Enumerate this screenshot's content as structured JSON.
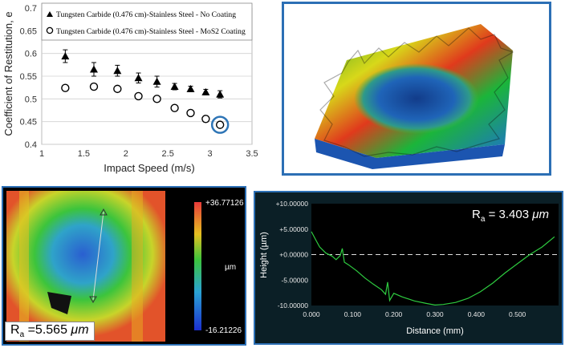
{
  "chart_data": [
    {
      "type": "scatter",
      "xlabel": "Impact Speed (m/s)",
      "ylabel": "Coefficient of Restitution, e",
      "xlim": [
        1,
        3.5
      ],
      "ylim": [
        0.4,
        0.7
      ],
      "x_ticks": [
        "1",
        "1.5",
        "2",
        "2.5",
        "3",
        "3.5"
      ],
      "y_ticks": [
        "0.4",
        "0.45",
        "0.5",
        "0.55",
        "0.6",
        "0.65",
        "0.7"
      ],
      "legend_position": "top",
      "series": [
        {
          "name": "Tungsten Carbide (0.476 cm)-Stainless Steel - No Coating",
          "marker": "filled-triangle",
          "points": [
            [
              1.28,
              0.594
            ],
            [
              1.62,
              0.565
            ],
            [
              1.9,
              0.562
            ],
            [
              2.15,
              0.546
            ],
            [
              2.37,
              0.538
            ],
            [
              2.58,
              0.527
            ],
            [
              2.77,
              0.522
            ],
            [
              2.95,
              0.515
            ],
            [
              3.12,
              0.51
            ]
          ],
          "error": [
            0.014,
            0.015,
            0.012,
            0.011,
            0.012,
            0.007,
            0.006,
            0.006,
            0.008
          ]
        },
        {
          "name": "Tungsten Carbide (0.476 cm)-Stainless Steel - MoS2 Coating",
          "marker": "open-circle",
          "points": [
            [
              1.28,
              0.524
            ],
            [
              1.62,
              0.527
            ],
            [
              1.9,
              0.522
            ],
            [
              2.15,
              0.506
            ],
            [
              2.37,
              0.5
            ],
            [
              2.58,
              0.48
            ],
            [
              2.77,
              0.469
            ],
            [
              2.95,
              0.456
            ],
            [
              3.12,
              0.443
            ]
          ]
        }
      ],
      "colors": {
        "marker": "#000000",
        "highlight": "#2e75b6"
      }
    },
    {
      "type": "line",
      "ylabel": "Height (µm)",
      "xlabel": "Distance (mm)",
      "xlim": [
        0,
        0.6
      ],
      "ylim": [
        -10,
        10
      ],
      "x_ticks": [
        "0.000",
        "0.100",
        "0.200",
        "0.300",
        "0.400",
        "0.500"
      ],
      "y_ticks": [
        "+10.00000",
        "+5.00000",
        "+0.00000",
        "-5.00000",
        "-10.00000"
      ],
      "annotation_ra": "3.403",
      "annotation_unit": "μm",
      "series": [
        {
          "points": [
            [
              0.0,
              4.5
            ],
            [
              0.01,
              3.0
            ],
            [
              0.02,
              1.5
            ],
            [
              0.035,
              0.3
            ],
            [
              0.05,
              -0.3
            ],
            [
              0.06,
              -1.0
            ],
            [
              0.07,
              -0.2
            ],
            [
              0.075,
              1.2
            ],
            [
              0.08,
              -1.5
            ],
            [
              0.09,
              -2.0
            ],
            [
              0.11,
              -3.2
            ],
            [
              0.13,
              -4.6
            ],
            [
              0.15,
              -5.8
            ],
            [
              0.17,
              -6.9
            ],
            [
              0.18,
              -7.8
            ],
            [
              0.185,
              -5.4
            ],
            [
              0.19,
              -9.0
            ],
            [
              0.2,
              -7.6
            ],
            [
              0.22,
              -8.3
            ],
            [
              0.25,
              -9.1
            ],
            [
              0.28,
              -9.6
            ],
            [
              0.3,
              -9.9
            ],
            [
              0.32,
              -9.8
            ],
            [
              0.35,
              -9.4
            ],
            [
              0.38,
              -8.6
            ],
            [
              0.41,
              -7.3
            ],
            [
              0.44,
              -5.6
            ],
            [
              0.47,
              -3.6
            ],
            [
              0.5,
              -1.8
            ],
            [
              0.53,
              0.0
            ],
            [
              0.56,
              1.5
            ],
            [
              0.59,
              3.5
            ]
          ]
        }
      ],
      "colors": {
        "line": "#2ecc40",
        "background": "#0b1f26",
        "plot_bg": "#000000"
      }
    }
  ],
  "surface_map": {
    "colorbar_max": "+36.77126",
    "colorbar_min": "-16.21226",
    "colorbar_unit": "µm",
    "ra_value": "5.565",
    "ra_unit": "μm"
  }
}
